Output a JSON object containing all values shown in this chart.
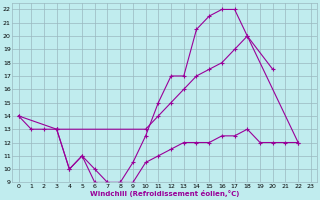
{
  "xlabel": "Windchill (Refroidissement éolien,°C)",
  "bg_color": "#c0ecee",
  "grid_color": "#9ab8c0",
  "line_color": "#990099",
  "xlim": [
    -0.5,
    23.5
  ],
  "ylim": [
    9,
    22.5
  ],
  "yticks": [
    9,
    10,
    11,
    12,
    13,
    14,
    15,
    16,
    17,
    18,
    19,
    20,
    21,
    22
  ],
  "xticks": [
    0,
    1,
    2,
    3,
    4,
    5,
    6,
    7,
    8,
    9,
    10,
    11,
    12,
    13,
    14,
    15,
    16,
    17,
    18,
    19,
    20,
    21,
    22,
    23
  ],
  "series": [
    {
      "x": [
        0,
        1,
        2,
        3,
        4,
        5,
        6,
        7,
        8,
        9,
        10,
        11,
        12,
        13,
        14,
        15,
        16,
        17,
        18,
        22
      ],
      "y": [
        14,
        13,
        13,
        13,
        10,
        11,
        9,
        9,
        9,
        10.5,
        12.5,
        15,
        17,
        17,
        20.5,
        21.5,
        22,
        22,
        20,
        12
      ]
    },
    {
      "x": [
        0,
        3,
        10,
        11,
        12,
        13,
        14,
        15,
        16,
        17,
        18,
        20
      ],
      "y": [
        14,
        13,
        13,
        14,
        15,
        16,
        17,
        17.5,
        18,
        19,
        20,
        17.5
      ]
    },
    {
      "x": [
        3,
        4,
        5,
        6,
        7,
        8,
        9,
        10,
        11,
        12,
        13,
        14,
        15,
        16,
        17,
        18,
        19,
        20,
        21,
        22
      ],
      "y": [
        13,
        10,
        11,
        10,
        9,
        9,
        9,
        10.5,
        11,
        11.5,
        12,
        12,
        12,
        12.5,
        12.5,
        13,
        12,
        12,
        12,
        12
      ]
    }
  ]
}
